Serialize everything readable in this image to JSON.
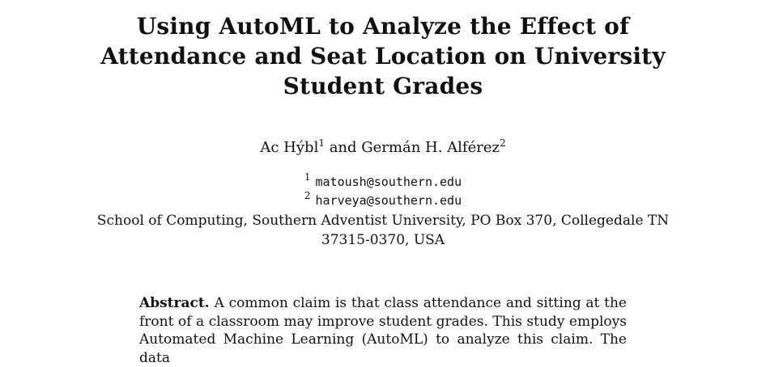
{
  "paper": {
    "title_lines": [
      "Using AutoML to Analyze the Effect of",
      "Attendance and Seat Location on University",
      "Student Grades"
    ],
    "authors": {
      "author1": "Ac Hýbl",
      "author1_mark": "1",
      "conjunction": " and ",
      "author2": "Germán H. Alférez",
      "author2_mark": "2"
    },
    "emails": [
      {
        "mark": "1",
        "address": "matoush@southern.edu"
      },
      {
        "mark": "2",
        "address": "harveya@southern.edu"
      }
    ],
    "affiliation": "School of Computing, Southern Adventist University, PO Box 370, Collegedale TN 37315-0370, USA",
    "abstract": {
      "label": "Abstract.",
      "text": "A common claim is that class attendance and sitting at the front of a classroom may improve student grades. This study employs Automated Machine Learning (AutoML) to analyze this claim. The data"
    }
  }
}
